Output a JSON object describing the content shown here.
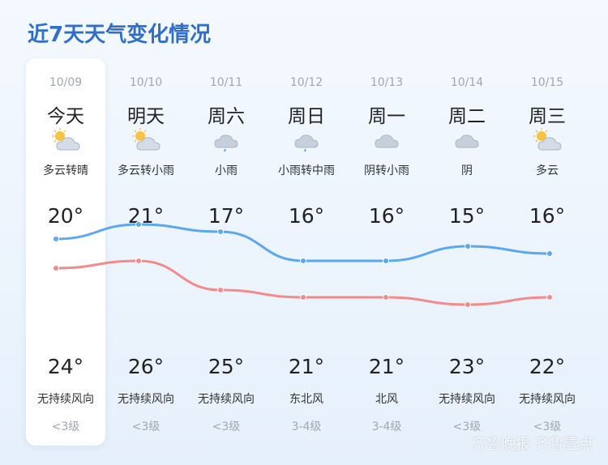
{
  "title": "近7天天气变化情况",
  "days": [
    {
      "date": "10/09",
      "name": "今天",
      "cond": "多云转晴",
      "icon": "partly-cloudy-sun-icon",
      "high": "20°",
      "low": "24°",
      "wind": "无持续风向",
      "level": "<3级"
    },
    {
      "date": "10/10",
      "name": "明天",
      "cond": "多云转小雨",
      "icon": "partly-cloudy-sun-icon",
      "high": "21°",
      "low": "26°",
      "wind": "无持续风向",
      "level": "<3级"
    },
    {
      "date": "10/11",
      "name": "周六",
      "cond": "小雨",
      "icon": "light-rain-icon",
      "high": "17°",
      "low": "25°",
      "wind": "无持续风向",
      "level": "<3级"
    },
    {
      "date": "10/12",
      "name": "周日",
      "cond": "小雨转中雨",
      "icon": "light-rain-icon",
      "high": "16°",
      "low": "21°",
      "wind": "东北风",
      "level": "3-4级"
    },
    {
      "date": "10/13",
      "name": "周一",
      "cond": "阴转小雨",
      "icon": "overcast-icon",
      "high": "16°",
      "low": "21°",
      "wind": "北风",
      "level": "3-4级"
    },
    {
      "date": "10/14",
      "name": "周二",
      "cond": "阴",
      "icon": "overcast-icon",
      "high": "15°",
      "low": "23°",
      "wind": "无持续风向",
      "level": "<3级"
    },
    {
      "date": "10/15",
      "name": "周三",
      "cond": "多云",
      "icon": "partly-cloudy-sun-icon",
      "high": "16°",
      "low": "22°",
      "wind": "无持续风向",
      "level": "<3级"
    }
  ],
  "chart_data": {
    "type": "line",
    "categories": [
      "10/09",
      "10/10",
      "10/11",
      "10/12",
      "10/13",
      "10/14",
      "10/15"
    ],
    "series": [
      {
        "values": [
          20,
          21,
          17,
          16,
          16,
          15,
          16
        ],
        "color": "#f48b8b"
      },
      {
        "values": [
          24,
          26,
          25,
          21,
          21,
          23,
          22
        ],
        "color": "#5aa9f0"
      }
    ]
  },
  "colors": {
    "title": "#2f6fcb",
    "high_line": "#f48b8b",
    "low_line": "#5aa9f0"
  },
  "watermark": "齐鲁晚报 齐鲁壹点"
}
